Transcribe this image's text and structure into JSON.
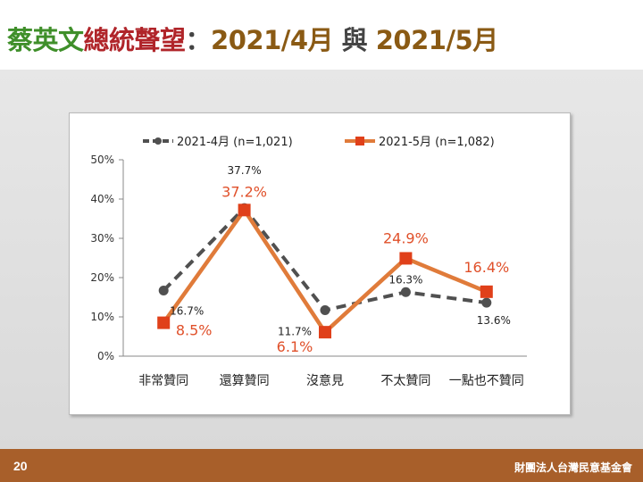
{
  "slide": {
    "title_parts": [
      {
        "text": "蔡英文",
        "color": "#3f8f2a"
      },
      {
        "text": "總統聲望",
        "color": "#b0252a"
      },
      {
        "text": "：",
        "color": "#444444"
      },
      {
        "text": "2021/4月 ",
        "color": "#8a5a14"
      },
      {
        "text": "與 ",
        "color": "#444444"
      },
      {
        "text": "2021/5月",
        "color": "#8a5a14"
      }
    ],
    "page_number": "20",
    "organization": "財團法人台灣民意基金會"
  },
  "chart_data": {
    "type": "line",
    "categories": [
      "非常贊同",
      "還算贊同",
      "沒意見",
      "不太贊同",
      "一點也不贊同"
    ],
    "series": [
      {
        "name": "2021-4月  (n=1,021)",
        "values": [
          16.7,
          37.7,
          11.7,
          16.3,
          13.6
        ],
        "labels": [
          "16.7%",
          "37.7%",
          "11.7%",
          "16.3%",
          "13.6%"
        ],
        "color": "#505050",
        "style": "dashed",
        "marker": "circle"
      },
      {
        "name": "2021-5月  (n=1,082)",
        "values": [
          8.5,
          37.2,
          6.1,
          24.9,
          16.4
        ],
        "labels": [
          "8.5%",
          "37.2%",
          "6.1%",
          "24.9%",
          "16.4%"
        ],
        "color": "#e07b3a",
        "marker_color": "#e0401a",
        "label_color": "#e0502a",
        "style": "solid",
        "marker": "square"
      }
    ],
    "y_ticks": [
      "0%",
      "10%",
      "20%",
      "30%",
      "40%",
      "50%"
    ],
    "ylim": [
      0,
      50
    ],
    "grid": false,
    "legend_position": "top"
  }
}
